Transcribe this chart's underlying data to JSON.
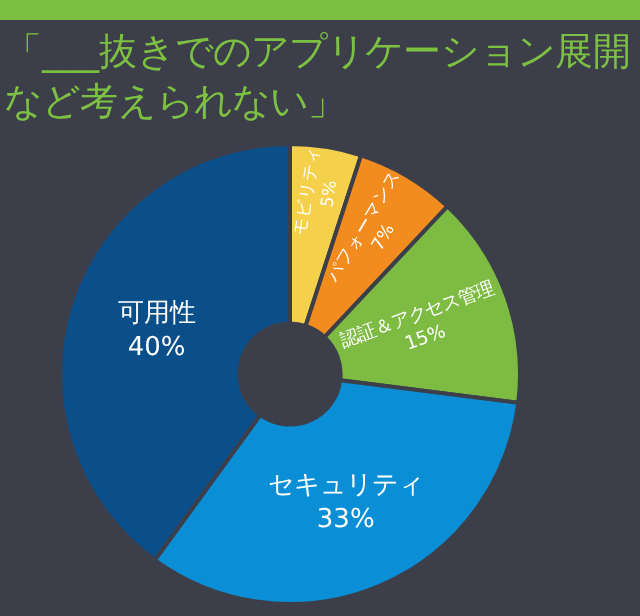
{
  "chart_data": {
    "type": "donut",
    "title": "「___抜きでのアプリケーション展開など考えられない」",
    "categories": [
      "モビリティ",
      "パフォーマンス",
      "認証＆アクセス管理",
      "セキュリティ",
      "可用性"
    ],
    "values": [
      5,
      7,
      15,
      33,
      40
    ],
    "value_labels": [
      "5%",
      "7%",
      "15%",
      "33%",
      "40%"
    ],
    "colors": [
      "#f5d04a",
      "#f28c1e",
      "#7dbb42",
      "#0a8fd6",
      "#0b4f8a"
    ]
  }
}
